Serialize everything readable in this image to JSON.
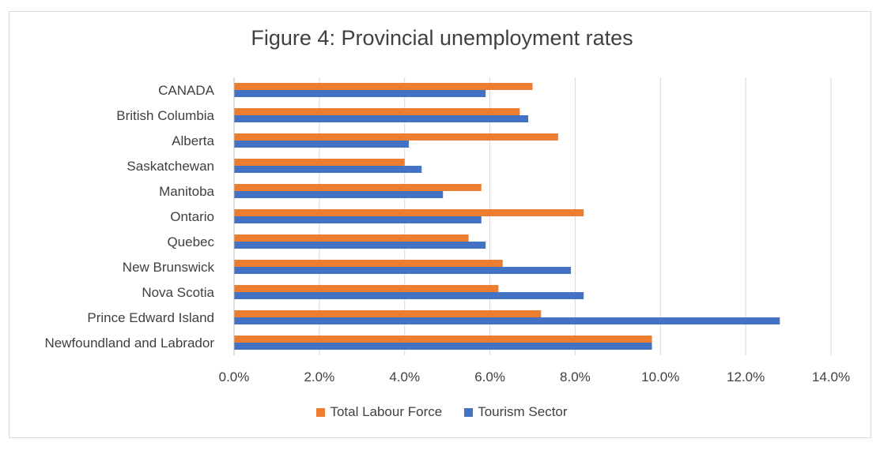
{
  "chart_data": {
    "type": "bar",
    "orientation": "horizontal",
    "title": "Figure 4: Provincial unemployment rates",
    "xlabel": "",
    "ylabel": "",
    "xlim": [
      0,
      14
    ],
    "x_ticks": [
      0,
      2,
      4,
      6,
      8,
      10,
      12,
      14
    ],
    "x_tick_labels": [
      "0.0%",
      "2.0%",
      "4.0%",
      "6.0%",
      "8.0%",
      "10.0%",
      "12.0%",
      "14.0%"
    ],
    "grid": true,
    "legend_position": "bottom",
    "categories": [
      "CANADA",
      "British Columbia",
      "Alberta",
      "Saskatchewan",
      "Manitoba",
      "Ontario",
      "Quebec",
      "New Brunswick",
      "Nova Scotia",
      "Prince Edward Island",
      "Newfoundland and Labrador"
    ],
    "series": [
      {
        "name": "Total Labour Force",
        "color": "#ed7d31",
        "values": [
          7.0,
          6.7,
          7.6,
          4.0,
          5.8,
          8.2,
          5.5,
          6.3,
          6.2,
          7.2,
          9.8
        ]
      },
      {
        "name": "Tourism Sector",
        "color": "#4472c4",
        "values": [
          5.9,
          6.9,
          4.1,
          4.4,
          4.9,
          5.8,
          5.9,
          7.9,
          8.2,
          12.8,
          9.8
        ]
      }
    ]
  }
}
